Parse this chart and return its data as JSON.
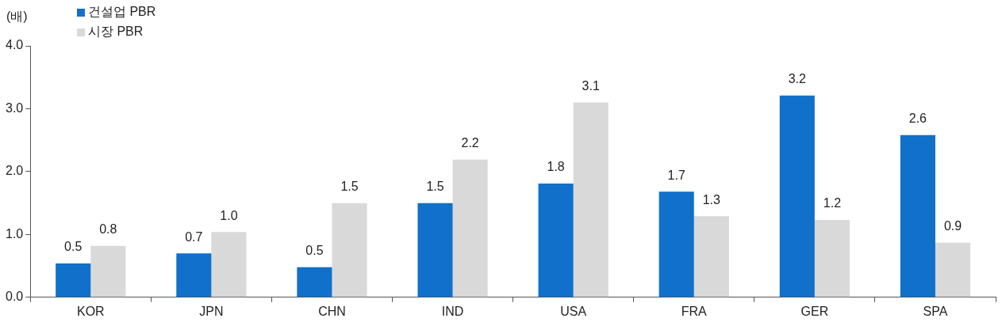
{
  "chart_data": {
    "type": "bar",
    "ylabel": "(배)",
    "categories": [
      "KOR",
      "JPN",
      "CHN",
      "IND",
      "USA",
      "FRA",
      "GER",
      "SPA"
    ],
    "series": [
      {
        "name": "건설업 PBR",
        "color": "#1170c9",
        "values": [
          0.54,
          0.7,
          0.48,
          1.5,
          1.81,
          1.68,
          3.21,
          2.58
        ],
        "value_labels": [
          "0.5",
          "0.7",
          "0.5",
          "1.5",
          "1.8",
          "1.7",
          "3.2",
          "2.6"
        ]
      },
      {
        "name": "시장 PBR",
        "color": "#d9d9d9",
        "values": [
          0.82,
          1.04,
          1.5,
          2.19,
          3.1,
          1.29,
          1.23,
          0.87
        ],
        "value_labels": [
          "0.8",
          "1.0",
          "1.5",
          "2.2",
          "3.1",
          "1.3",
          "1.2",
          "0.9"
        ]
      }
    ],
    "ylim": [
      0,
      4
    ],
    "yticks": [
      {
        "value": 0,
        "label": "0.0"
      },
      {
        "value": 1,
        "label": "1.0"
      },
      {
        "value": 2,
        "label": "2.0"
      },
      {
        "value": 3,
        "label": "3.0"
      },
      {
        "value": 4,
        "label": "4.0"
      }
    ],
    "grid": false,
    "legend": "top left"
  }
}
